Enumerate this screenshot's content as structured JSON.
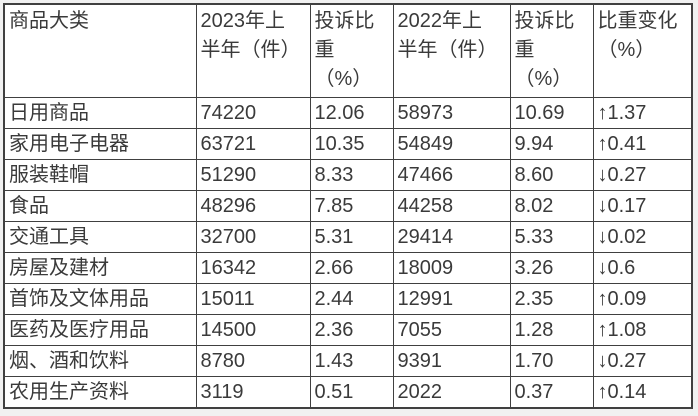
{
  "table": {
    "title_semantic": "商品大类投诉对比表",
    "columns": [
      {
        "id": "category",
        "label": "商品大类"
      },
      {
        "id": "h1_2023",
        "label": "2023年上\n半年（件）"
      },
      {
        "id": "share_2023",
        "label": "投诉比\n重\n（%）"
      },
      {
        "id": "h1_2022",
        "label": "2022年上\n半年（件）"
      },
      {
        "id": "share_2022",
        "label": "投诉比\n重\n（%）"
      },
      {
        "id": "change",
        "label": "比重变化\n（%）"
      }
    ],
    "rows": [
      {
        "category": "日用商品",
        "h1_2023": "74220",
        "share_2023": "12.06",
        "h1_2022": "58973",
        "share_2022": "10.69",
        "change": "↑1.37"
      },
      {
        "category": "家用电子电器",
        "h1_2023": "63721",
        "share_2023": "10.35",
        "h1_2022": "54849",
        "share_2022": "9.94",
        "change": "↑0.41"
      },
      {
        "category": "服装鞋帽",
        "h1_2023": "51290",
        "share_2023": "8.33",
        "h1_2022": "47466",
        "share_2022": "8.60",
        "change": "↓0.27"
      },
      {
        "category": "食品",
        "h1_2023": "48296",
        "share_2023": "7.85",
        "h1_2022": "44258",
        "share_2022": "8.02",
        "change": "↓0.17"
      },
      {
        "category": "交通工具",
        "h1_2023": "32700",
        "share_2023": "5.31",
        "h1_2022": "29414",
        "share_2022": "5.33",
        "change": "↓0.02"
      },
      {
        "category": "房屋及建材",
        "h1_2023": "16342",
        "share_2023": "2.66",
        "h1_2022": "18009",
        "share_2022": "3.26",
        "change": "↓0.6"
      },
      {
        "category": "首饰及文体用品",
        "h1_2023": "15011",
        "share_2023": "2.44",
        "h1_2022": "12991",
        "share_2022": "2.35",
        "change": "↑0.09"
      },
      {
        "category": "医药及医疗用品",
        "h1_2023": "14500",
        "share_2023": "2.36",
        "h1_2022": "7055",
        "share_2022": "1.28",
        "change": "↑1.08"
      },
      {
        "category": "烟、酒和饮料",
        "h1_2023": "8780",
        "share_2023": "1.43",
        "h1_2022": "9391",
        "share_2022": "1.70",
        "change": "↓0.27"
      },
      {
        "category": "农用生产资料",
        "h1_2023": "3119",
        "share_2023": "0.51",
        "h1_2022": "2022",
        "share_2022": "0.37",
        "change": "↑0.14"
      }
    ]
  },
  "colors": {
    "text": "#3a3a3a",
    "border": "#404040",
    "cell_background": "#ffffff",
    "page_background": "#f1f1f1"
  }
}
